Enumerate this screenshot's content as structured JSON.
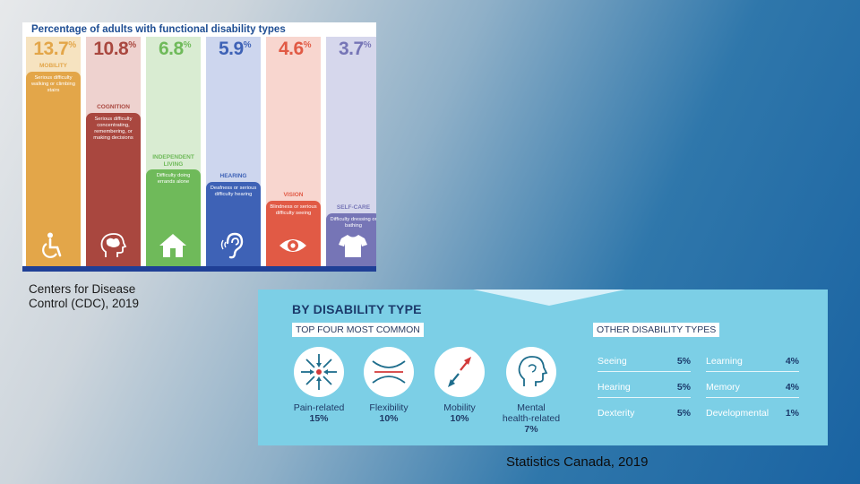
{
  "chart_data": [
    {
      "type": "bar",
      "title": "Percentage of adults with functional disability types",
      "categories": [
        "MOBILITY",
        "COGNITION",
        "INDEPENDENT LIVING",
        "HEARING",
        "VISION",
        "SELF-CARE"
      ],
      "values": [
        13.7,
        10.8,
        6.8,
        5.9,
        4.6,
        3.7
      ],
      "value_labels": [
        "13.7",
        "10.8",
        "6.8",
        "5.9",
        "4.6",
        "3.7"
      ],
      "unit": "%",
      "descriptions": [
        "Serious difficulty walking or climbing stairs",
        "Serious difficulty concentrating, remembering, or making decisions",
        "Difficulty doing errands alone",
        "Deafness or serious difficulty hearing",
        "Blindness or serious difficulty seeing",
        "Difficulty dressing or bathing"
      ],
      "colors": [
        "#e3a649",
        "#a9473f",
        "#6fba5a",
        "#3e62b6",
        "#e15a45",
        "#7675b6"
      ],
      "bg_colors": [
        "#f6e3c0",
        "#eed2cf",
        "#d9ecd2",
        "#cdd6ee",
        "#f8d6cf",
        "#d6d7ec"
      ],
      "icons": [
        "wheelchair-icon",
        "brain-icon",
        "house-icon",
        "ear-icon",
        "eye-icon",
        "shirt-icon"
      ],
      "ylim": [
        0,
        14
      ]
    },
    {
      "type": "table",
      "title": "BY DISABILITY TYPE",
      "top_four": {
        "heading": "TOP FOUR MOST COMMON",
        "items": [
          {
            "label": "Pain-related",
            "value": "15%",
            "icon": "pain-icon"
          },
          {
            "label": "Flexibility",
            "value": "10%",
            "icon": "flexibility-icon"
          },
          {
            "label": "Mobility",
            "value": "10%",
            "icon": "mobility-icon"
          },
          {
            "label": "Mental health-related",
            "value": "7%",
            "icon": "head-icon"
          }
        ]
      },
      "other": {
        "heading": "OTHER DISABILITY TYPES",
        "left": [
          {
            "label": "Seeing",
            "value": "5%"
          },
          {
            "label": "Hearing",
            "value": "5%"
          },
          {
            "label": "Dexterity",
            "value": "5%"
          }
        ],
        "right": [
          {
            "label": "Learning",
            "value": "4%"
          },
          {
            "label": "Memory",
            "value": "4%"
          },
          {
            "label": "Developmental",
            "value": "1%"
          }
        ]
      }
    }
  ],
  "sources": {
    "cdc_line1": "Centers for Disease",
    "cdc_line2": "Control (CDC), 2019",
    "statcan": "Statistics Canada, 2019"
  }
}
